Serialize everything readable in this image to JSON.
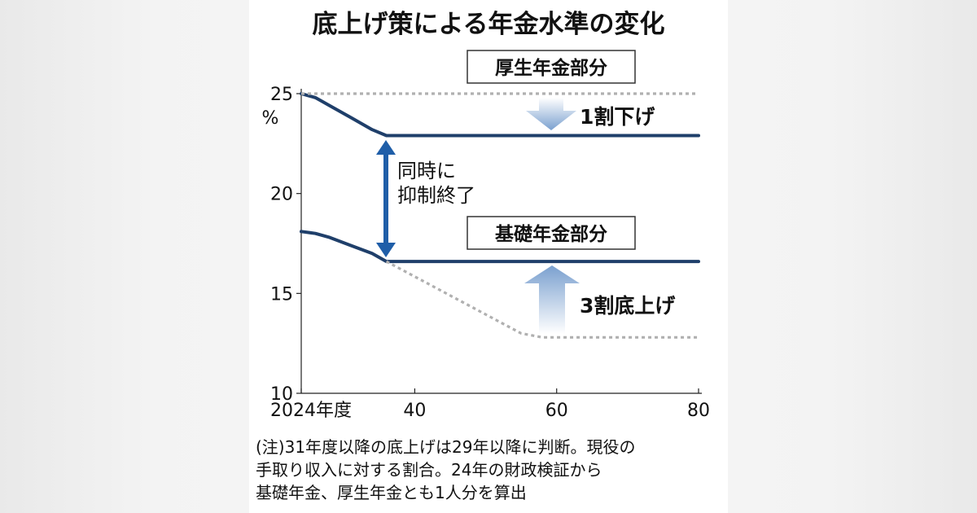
{
  "chart_data": {
    "type": "line",
    "title": "底上げ策による年金水準の変化",
    "ylabel": "%",
    "ylim": [
      10,
      25
    ],
    "yticks": [
      25,
      20,
      15,
      10
    ],
    "xlim": [
      2024,
      2080
    ],
    "xticks": [
      {
        "value": 2024,
        "label": "2024年度"
      },
      {
        "value": 2040,
        "label": "40"
      },
      {
        "value": 2060,
        "label": "60"
      },
      {
        "value": 2080,
        "label": "80"
      }
    ],
    "series": [
      {
        "name": "厚生年金部分",
        "style": "solid",
        "color": "#1f3f6a",
        "x": [
          2024,
          2026,
          2028,
          2031,
          2034,
          2036,
          2080
        ],
        "y": [
          25.0,
          24.8,
          24.4,
          23.8,
          23.2,
          22.9,
          22.9
        ]
      },
      {
        "name": "厚生年金部分(従来)",
        "style": "dotted",
        "color": "#b0b0b0",
        "x": [
          2024,
          2080
        ],
        "y": [
          25.0,
          25.0
        ]
      },
      {
        "name": "基礎年金部分",
        "style": "solid",
        "color": "#1f3f6a",
        "x": [
          2024,
          2026,
          2028,
          2031,
          2034,
          2036,
          2080
        ],
        "y": [
          18.1,
          18.0,
          17.8,
          17.4,
          17.0,
          16.6,
          16.6
        ]
      },
      {
        "name": "基礎年金部分(従来)",
        "style": "dotted",
        "color": "#b0b0b0",
        "x": [
          2036,
          2055,
          2058,
          2080
        ],
        "y": [
          16.6,
          13.0,
          12.8,
          12.8
        ]
      }
    ],
    "annotations": {
      "kosei_label": "厚生年金部分",
      "kiso_label": "基礎年金部分",
      "kosei_change": "1割下げ",
      "kiso_change": "3割底上げ",
      "simultaneous_line1": "同時に",
      "simultaneous_line2": "抑制終了"
    },
    "note_lines": [
      "(注)31年度以降の底上げは29年以降に判断。現役の",
      "手取り収入に対する割合。24年の財政検証から",
      "基礎年金、厚生年金とも1人分を算出"
    ],
    "colors": {
      "line": "#1f3f6a",
      "dotted": "#b0b0b0",
      "arrow": "#1f5ea8",
      "wide_arrow": "#7aa0cf"
    }
  }
}
